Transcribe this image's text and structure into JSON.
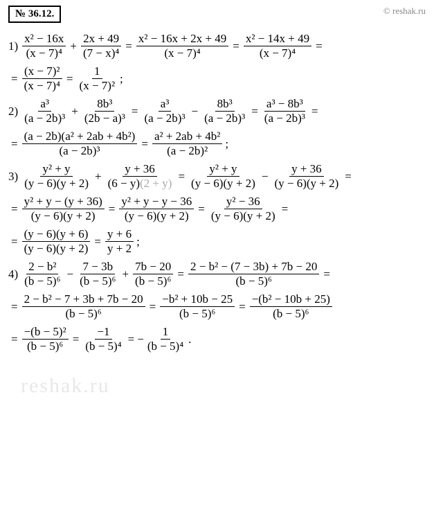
{
  "header": {
    "problem_number": "№ 36.12.",
    "copyright": "© reshak.ru",
    "watermark": "reshak.ru"
  },
  "colors": {
    "text": "#000000",
    "gray_text": "#aaaaaa",
    "watermark": "#e8e8e8",
    "copyright": "#888888",
    "background": "#ffffff",
    "border": "#000000"
  },
  "lines": {
    "l1": {
      "label": "1)",
      "f1n": "x² − 16x",
      "f1d": "(x − 7)⁴",
      "f2n": "2x + 49",
      "f2d": "(7 − x)⁴",
      "f3n": "x² − 16x + 2x + 49",
      "f3d": "(x − 7)⁴",
      "f4n": "x² − 14x + 49",
      "f4d": "(x − 7)⁴"
    },
    "l2": {
      "f1n": "(x − 7)²",
      "f1d": "(x − 7)⁴",
      "f2n": "1",
      "f2d": "(x − 7)²"
    },
    "l3": {
      "label": "2)",
      "f1n": "a³",
      "f1d": "(a − 2b)³",
      "f2n": "8b³",
      "f2d": "(2b − a)³",
      "f3n": "a³",
      "f3d": "(a − 2b)³",
      "f4n": "8b³",
      "f4d": "(a − 2b)³",
      "f5n": "a³ − 8b³",
      "f5d": "(a − 2b)³"
    },
    "l4": {
      "f1n": "(a − 2b)(a² + 2ab + 4b²)",
      "f1d": "(a − 2b)³",
      "f2n": "a² + 2ab + 4b²",
      "f2d": "(a − 2b)²"
    },
    "l5": {
      "label": "3)",
      "f1n": "y² + y",
      "f1d": "(y − 6)(y + 2)",
      "f2n": "y + 36",
      "f2d_a": "(6 − y)",
      "f2d_b": "(2 + y)",
      "f3n": "y² + y",
      "f3d": "(y − 6)(y + 2)",
      "f4n": "y + 36",
      "f4d": "(y − 6)(y + 2)"
    },
    "l6": {
      "f1n": "y² + y − (y + 36)",
      "f1d": "(y − 6)(y + 2)",
      "f2n": "y² + y − y − 36",
      "f2d": "(y − 6)(y + 2)",
      "f3n": "y² − 36",
      "f3d": "(y − 6)(y + 2)"
    },
    "l7": {
      "f1n": "(y − 6)(y + 6)",
      "f1d": "(y − 6)(y + 2)",
      "f2n": "y + 6",
      "f2d": "y + 2"
    },
    "l8": {
      "label": "4)",
      "f1n": "2 − b²",
      "f1d": "(b − 5)⁶",
      "f2n": "7 − 3b",
      "f2d": "(b − 5)⁶",
      "f3n": "7b − 20",
      "f3d": "(b − 5)⁶",
      "f4n": "2 − b² − (7 − 3b) + 7b − 20",
      "f4d": "(b − 5)⁶"
    },
    "l9": {
      "f1n": "2 − b² − 7 + 3b + 7b − 20",
      "f1d": "(b − 5)⁶",
      "f2n": "−b² + 10b − 25",
      "f2d": "(b − 5)⁶",
      "f3n": "−(b² − 10b + 25)",
      "f3d": "(b − 5)⁶"
    },
    "l10": {
      "f1n": "−(b − 5)²",
      "f1d": "(b − 5)⁶",
      "f2n": "−1",
      "f2d": "(b − 5)⁴",
      "f3n": "1",
      "f3d": "(b − 5)⁴"
    }
  },
  "ops": {
    "plus": "+",
    "minus": "−",
    "eq": "=",
    "neg": "− ",
    "semi": " ;",
    "per": " ."
  }
}
